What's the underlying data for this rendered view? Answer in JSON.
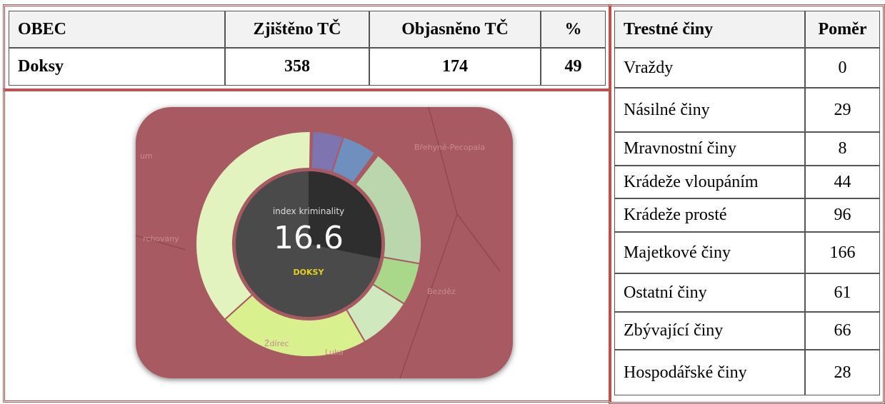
{
  "left_table": {
    "headers": [
      "OBEC",
      "Zjištěno TČ",
      "Objasněno TČ",
      "%"
    ],
    "rows": [
      [
        "Doksy",
        358,
        174,
        49
      ]
    ]
  },
  "image": {
    "label": "index kriminality",
    "value": "16.6",
    "name": "DOKSY",
    "map_labels": [
      "um",
      "rchovany",
      "Břehyně-Pecopala",
      "Bezděz",
      "Ždírec",
      "Luka"
    ]
  },
  "right_table": {
    "headers": [
      "Trestné činy",
      "Poměr"
    ],
    "rows": [
      [
        "Vraždy",
        0
      ],
      [
        "Násilné činy",
        29
      ],
      [
        "Mravnostní činy",
        8
      ],
      [
        "Krádeže vloupáním",
        44
      ],
      [
        "Krádeže prosté",
        96
      ],
      [
        "Majetkové činy",
        166
      ],
      [
        "Ostatní činy",
        61
      ],
      [
        "Zbývající činy",
        66
      ],
      [
        "Hospodářské činy",
        28
      ]
    ]
  }
}
